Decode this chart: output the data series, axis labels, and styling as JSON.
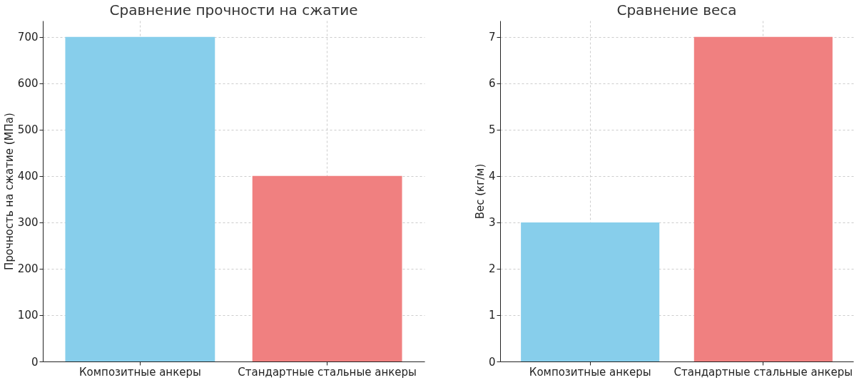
{
  "chart_data": [
    {
      "type": "bar",
      "title": "Сравнение прочности на сжатие",
      "ylabel": "Прочность на сжатие (МПа)",
      "categories": [
        "Композитные анкеры",
        "Стандартные стальные анкеры"
      ],
      "values": [
        700,
        400
      ],
      "colors": [
        "#87ceeb",
        "#f08080"
      ],
      "ylim": [
        0,
        735
      ],
      "yticks": [
        0,
        100,
        200,
        300,
        400,
        500,
        600,
        700
      ],
      "grid": true
    },
    {
      "type": "bar",
      "title": "Сравнение веса",
      "ylabel": "Вес (кг/м)",
      "categories": [
        "Композитные анкеры",
        "Стандартные стальные анкеры"
      ],
      "values": [
        3,
        7
      ],
      "colors": [
        "#87ceeb",
        "#f08080"
      ],
      "ylim": [
        0,
        7.35
      ],
      "yticks": [
        0,
        1,
        2,
        3,
        4,
        5,
        6,
        7
      ],
      "grid": true
    }
  ]
}
